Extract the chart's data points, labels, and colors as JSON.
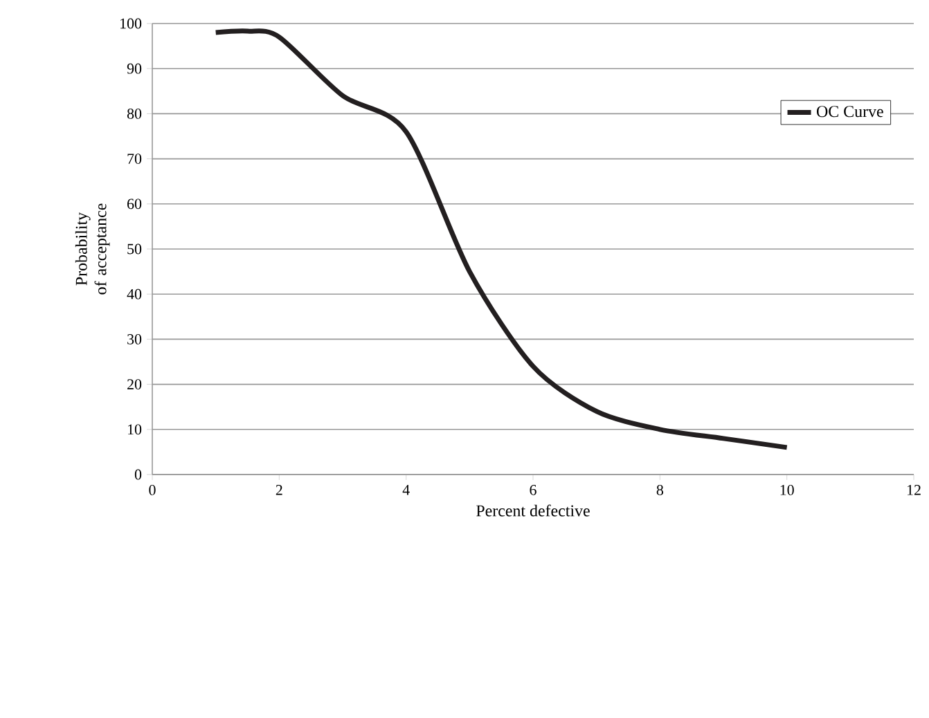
{
  "chart_data": {
    "type": "line",
    "xlabel": "Percent defective",
    "ylabel": "Probability of acceptance",
    "x": [
      1,
      1.5,
      2,
      3,
      4,
      5,
      6,
      7,
      8,
      9,
      10
    ],
    "series": [
      {
        "name": "OC Curve",
        "color": "#231f20",
        "values": [
          98,
          98.3,
          97,
          84,
          76,
          45,
          24,
          14,
          10,
          8,
          6
        ]
      }
    ],
    "xlim": [
      0,
      12
    ],
    "xticks": [
      0,
      2,
      4,
      6,
      8,
      10,
      12
    ],
    "ylim": [
      0,
      100
    ],
    "yticks": [
      0,
      10,
      20,
      30,
      40,
      50,
      60,
      70,
      80,
      90,
      100
    ],
    "grid": "y",
    "legend": "top right",
    "marker": "none",
    "line_style": "solid"
  }
}
